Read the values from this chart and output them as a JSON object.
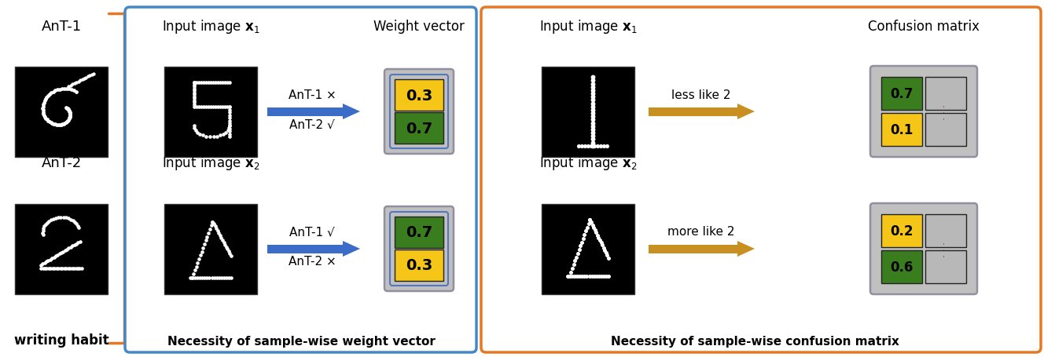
{
  "ant1_label": "AnT-1",
  "ant2_label": "AnT-2",
  "writing_habit_label": "writing habit",
  "weight_vector_label": "Weight vector",
  "necessity_weight_label": "Necessity of sample-wise weight vector",
  "necessity_cm_label": "Necessity of sample-wise confusion matrix",
  "confusion_matrix_label": "Confusion matrix",
  "less_like_2": "less like 2",
  "more_like_2": "more like 2",
  "ant1_x_label": "AnT-1 ×",
  "ant2_check_label": "AnT-2 √",
  "ant1_check_label": "AnT-1 √",
  "ant2_x_label": "AnT-2 ×",
  "weight1_top": "0.3",
  "weight1_bot": "0.7",
  "weight2_top": "0.7",
  "weight2_bot": "0.3",
  "cm1_top": "0.7",
  "cm1_bot": "0.1",
  "cm2_top": "0.2",
  "cm2_bot": "0.6",
  "color_yellow": "#F5C518",
  "color_green": "#3A7D1E",
  "color_blue_arrow": "#3B6CC8",
  "color_gold_arrow": "#C89020",
  "color_orange_border": "#E87722",
  "color_blue_border": "#4488CC",
  "color_gray_bg": "#C0C0C0",
  "color_cell_gray": "#B8B8B8"
}
